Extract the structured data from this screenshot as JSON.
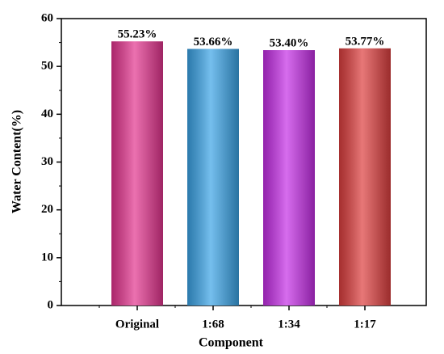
{
  "chart_data": {
    "type": "bar",
    "x_label": "Component",
    "y_label": "Water Content(%)",
    "categories": [
      "Original",
      "1:68",
      "1:34",
      "1:17"
    ],
    "values": [
      55.23,
      53.66,
      53.4,
      53.77
    ],
    "value_labels": [
      "55.23%",
      "53.66%",
      "53.40%",
      "53.77%"
    ],
    "colors": [
      "#e3348e",
      "#3aa3e6",
      "#c52ee6",
      "#dd3e3e"
    ],
    "ylim": [
      0,
      60
    ],
    "yticks": [
      0,
      10,
      20,
      30,
      40,
      50,
      60
    ]
  }
}
